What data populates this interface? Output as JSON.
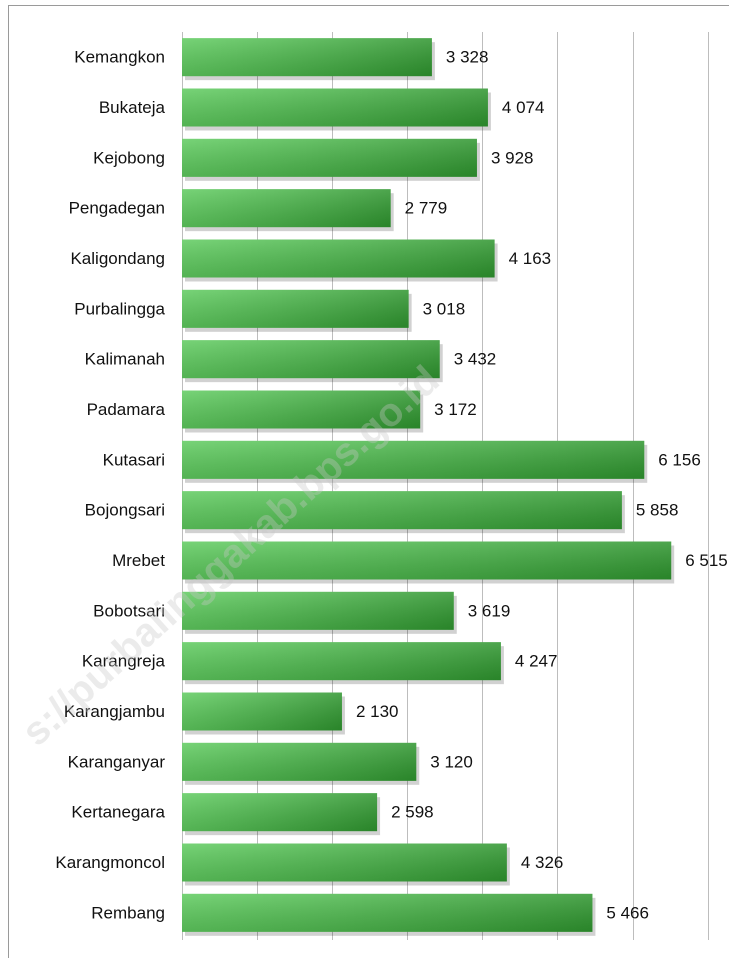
{
  "chart_data": {
    "type": "bar",
    "orientation": "horizontal",
    "categories": [
      "Kemangkon",
      "Bukateja",
      "Kejobong",
      "Pengadegan",
      "Kaligondang",
      "Purbalingga",
      "Kalimanah",
      "Padamara",
      "Kutasari",
      "Bojongsari",
      "Mrebet",
      "Bobotsari",
      "Karangreja",
      "Karangjambu",
      "Karanganyar",
      "Kertanegara",
      "Karangmoncol",
      "Rembang"
    ],
    "values": [
      3328,
      4074,
      3928,
      2779,
      4163,
      3018,
      3432,
      3172,
      6156,
      5858,
      6515,
      3619,
      4247,
      2130,
      3120,
      2598,
      4326,
      5466
    ],
    "value_labels": [
      "3 328",
      "4 074",
      "3 928",
      "2 779",
      "4 163",
      "3 018",
      "3 432",
      "3 172",
      "6 156",
      "5 858",
      "6 515",
      "3 619",
      "4 247",
      "2 130",
      "3 120",
      "2 598",
      "4 326",
      "5 466"
    ],
    "color": "#3cc03c",
    "xlim": [
      0,
      7000
    ],
    "xticks": [
      0,
      1000,
      2000,
      3000,
      4000,
      5000,
      6000,
      7000
    ],
    "grid": true,
    "watermark": "s://purbalinggakab.bps.go.id"
  }
}
